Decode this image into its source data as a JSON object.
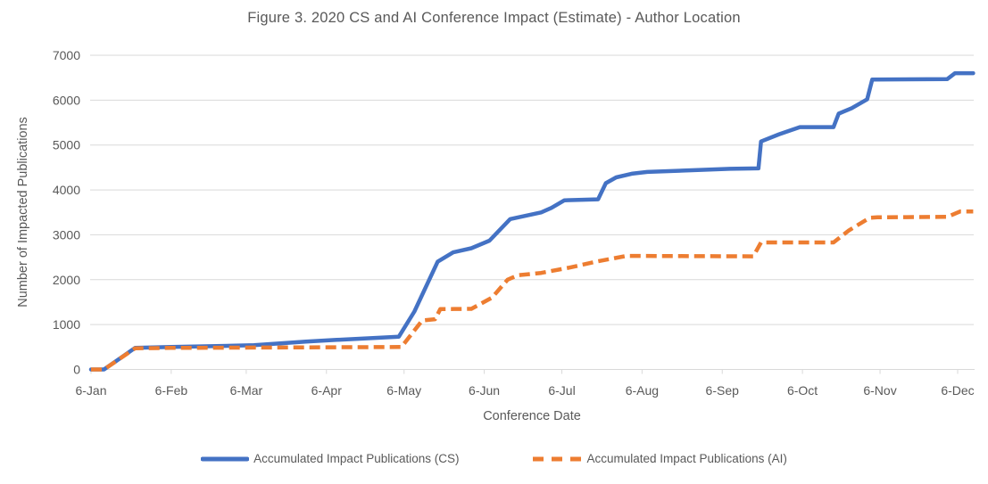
{
  "chart_data": {
    "type": "line",
    "title": "Figure 3. 2020 CS and AI Conference Impact (Estimate) - Author Location",
    "xlabel": "Conference Date",
    "ylabel": "Number of Impacted Publications",
    "ylim": [
      0,
      7000
    ],
    "y_ticks": [
      0,
      1000,
      2000,
      3000,
      4000,
      5000,
      6000,
      7000
    ],
    "x_ticks": [
      {
        "label": "6-Jan",
        "day": 6
      },
      {
        "label": "6-Feb",
        "day": 37
      },
      {
        "label": "6-Mar",
        "day": 66
      },
      {
        "label": "6-Apr",
        "day": 97
      },
      {
        "label": "6-May",
        "day": 127
      },
      {
        "label": "6-Jun",
        "day": 158
      },
      {
        "label": "6-Jul",
        "day": 188
      },
      {
        "label": "6-Aug",
        "day": 219
      },
      {
        "label": "6-Sep",
        "day": 250
      },
      {
        "label": "6-Oct",
        "day": 281
      },
      {
        "label": "6-Nov",
        "day": 311
      },
      {
        "label": "6-Dec",
        "day": 341
      }
    ],
    "x_range_days": [
      6,
      347
    ],
    "grid": true,
    "legend_position": "bottom",
    "grid_color": "#D9D9D9",
    "series": [
      {
        "name": "Accumulated Impact Publications (CS)",
        "color": "#4472C4",
        "style": "solid",
        "points": [
          [
            6,
            0
          ],
          [
            11,
            0
          ],
          [
            23,
            480
          ],
          [
            37,
            500
          ],
          [
            69,
            540
          ],
          [
            89,
            620
          ],
          [
            101,
            660
          ],
          [
            115,
            700
          ],
          [
            125,
            730
          ],
          [
            131,
            1290
          ],
          [
            140,
            2400
          ],
          [
            146,
            2610
          ],
          [
            153,
            2700
          ],
          [
            160,
            2870
          ],
          [
            168,
            3350
          ],
          [
            180,
            3500
          ],
          [
            184,
            3600
          ],
          [
            189,
            3770
          ],
          [
            202,
            3790
          ],
          [
            205,
            4150
          ],
          [
            209,
            4280
          ],
          [
            215,
            4360
          ],
          [
            221,
            4400
          ],
          [
            253,
            4470
          ],
          [
            264,
            4480
          ],
          [
            265,
            5080
          ],
          [
            272,
            5240
          ],
          [
            280,
            5400
          ],
          [
            293,
            5400
          ],
          [
            295,
            5700
          ],
          [
            300,
            5820
          ],
          [
            306,
            6020
          ],
          [
            308,
            6460
          ],
          [
            337,
            6470
          ],
          [
            340,
            6600
          ],
          [
            347,
            6600
          ]
        ]
      },
      {
        "name": "Accumulated Impact Publications (AI)",
        "color": "#ED7D31",
        "style": "dashed",
        "points": [
          [
            6,
            0
          ],
          [
            11,
            0
          ],
          [
            23,
            470
          ],
          [
            37,
            480
          ],
          [
            126,
            500
          ],
          [
            134,
            1090
          ],
          [
            139,
            1120
          ],
          [
            141,
            1345
          ],
          [
            153,
            1350
          ],
          [
            161,
            1600
          ],
          [
            167,
            2000
          ],
          [
            171,
            2100
          ],
          [
            180,
            2150
          ],
          [
            191,
            2270
          ],
          [
            202,
            2410
          ],
          [
            213,
            2530
          ],
          [
            262,
            2520
          ],
          [
            265,
            2830
          ],
          [
            293,
            2830
          ],
          [
            299,
            3100
          ],
          [
            307,
            3380
          ],
          [
            310,
            3390
          ],
          [
            337,
            3400
          ],
          [
            342,
            3520
          ],
          [
            347,
            3520
          ]
        ]
      }
    ]
  }
}
